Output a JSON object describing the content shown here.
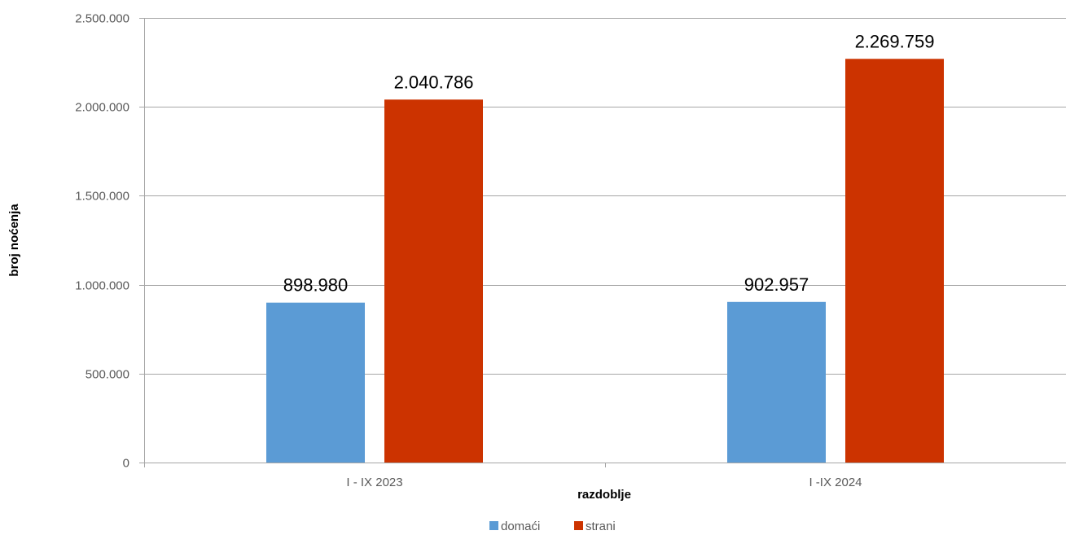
{
  "chart_data": {
    "type": "bar",
    "categories": [
      "I - IX 2023",
      "I -IX 2024"
    ],
    "series": [
      {
        "name": "domaći",
        "values": [
          898980,
          902957
        ],
        "labels": [
          "898.980",
          "902.957"
        ],
        "color": "#5b9bd5"
      },
      {
        "name": "strani",
        "values": [
          2040786,
          2269759
        ],
        "labels": [
          "2.040.786",
          "2.269.759"
        ],
        "color": "#cc3300"
      }
    ],
    "xlabel": "razdoblje",
    "ylabel": "broj noćenja",
    "ylim": [
      0,
      2500000
    ],
    "yticks": [
      0,
      500000,
      1000000,
      1500000,
      2000000,
      2500000
    ],
    "ytick_labels": [
      "0",
      "500.000",
      "1.000.000",
      "1.500.000",
      "2.000.000",
      "2.500.000"
    ],
    "grid": true,
    "legend_position": "bottom"
  }
}
